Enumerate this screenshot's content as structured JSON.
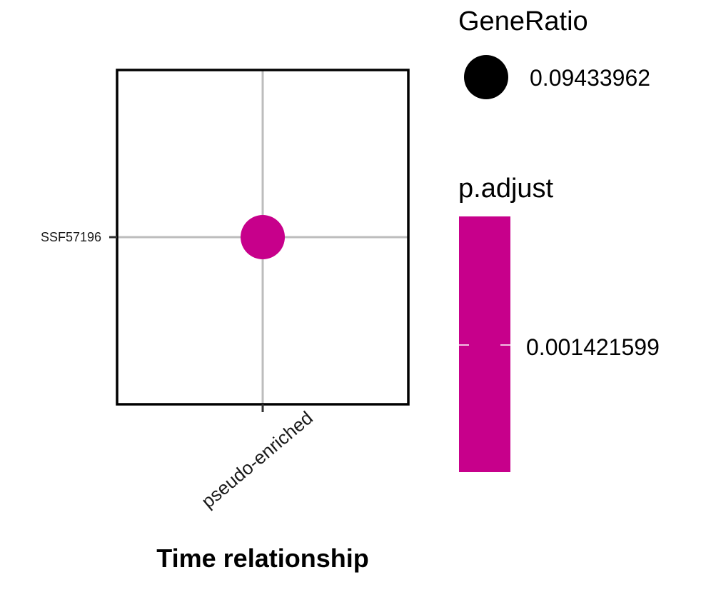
{
  "chart_data": {
    "type": "scatter",
    "title": "",
    "xlabel": "Time relationship",
    "ylabel": "",
    "x_categories": [
      "pseudo-enriched"
    ],
    "y_categories": [
      "SSF57196"
    ],
    "points": [
      {
        "x": "pseudo-enriched",
        "y": "SSF57196",
        "GeneRatio": 0.09433962,
        "p_adjust": 0.001421599
      }
    ],
    "grid": true,
    "legend_placement": "right",
    "size_legend": {
      "title": "GeneRatio",
      "entries": [
        {
          "label": "0.09433962",
          "value": 0.09433962
        }
      ]
    },
    "color_legend": {
      "title": "p.adjust",
      "label": "0.001421599",
      "value": 0.001421599
    },
    "colors": {
      "point": "#c7008b",
      "colorbar": "#c7008b",
      "panel_border": "#000000",
      "gridline": "#bdbdbd",
      "size_key": "#000000"
    }
  }
}
